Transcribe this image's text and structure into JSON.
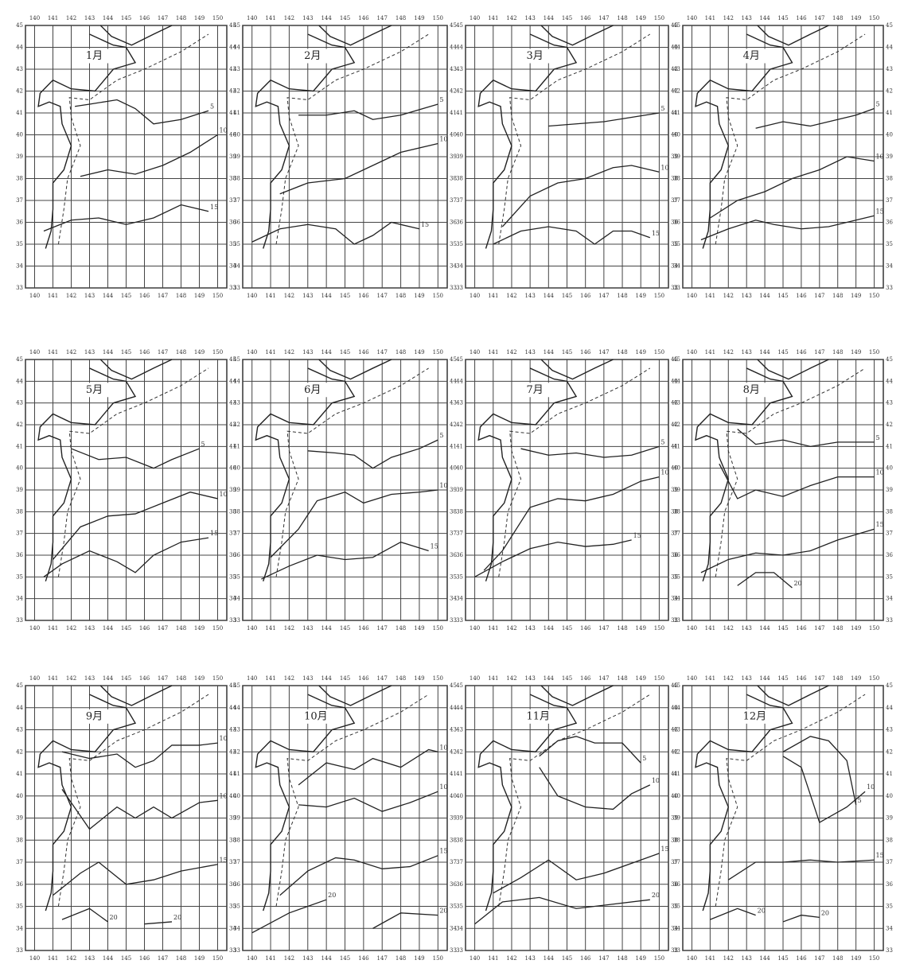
{
  "xlim": [
    139.5,
    150.5
  ],
  "ylim": [
    33,
    45
  ],
  "xticks": [
    140,
    141,
    142,
    143,
    144,
    145,
    146,
    147,
    148,
    149,
    150
  ],
  "yticks": [
    33,
    34,
    35,
    36,
    37,
    38,
    39,
    40,
    41,
    42,
    43,
    44,
    45
  ],
  "panels": [
    {
      "month": "1月",
      "isotherms": [
        {
          "level": 5,
          "lon": [
            142.2,
            143,
            144.5,
            145.5,
            146.5,
            148,
            149.5
          ],
          "lat": [
            41.3,
            41.4,
            41.6,
            41.2,
            40.5,
            40.7,
            41.1
          ]
        },
        {
          "level": 10,
          "lon": [
            142.5,
            144,
            145.5,
            147,
            148.5,
            150
          ],
          "lat": [
            38.1,
            38.4,
            38.2,
            38.6,
            39.2,
            40
          ]
        },
        {
          "level": 15,
          "lon": [
            140.5,
            142,
            143.5,
            145,
            146.5,
            148,
            149.5
          ],
          "lat": [
            35.6,
            36.1,
            36.2,
            35.9,
            36.2,
            36.8,
            36.5
          ]
        }
      ]
    },
    {
      "month": "2月",
      "isotherms": [
        {
          "level": 5,
          "lon": [
            142.5,
            144,
            145.5,
            146.5,
            148,
            150
          ],
          "lat": [
            40.9,
            40.9,
            41.1,
            40.7,
            40.9,
            41.4
          ]
        },
        {
          "level": 10,
          "lon": [
            141.5,
            143,
            145,
            146.5,
            148,
            150
          ],
          "lat": [
            37.3,
            37.8,
            38,
            38.6,
            39.2,
            39.6
          ]
        },
        {
          "level": 15,
          "lon": [
            140,
            141.5,
            143,
            144.5,
            145.5,
            146.5,
            147.5,
            149
          ],
          "lat": [
            35.1,
            35.7,
            35.9,
            35.7,
            35,
            35.4,
            36,
            35.7
          ]
        }
      ]
    },
    {
      "month": "3月",
      "isotherms": [
        {
          "level": 5,
          "lon": [
            144,
            145.5,
            147,
            148.5,
            150
          ],
          "lat": [
            40.4,
            40.5,
            40.6,
            40.8,
            41
          ]
        },
        {
          "level": 10,
          "lon": [
            141.5,
            143,
            144.5,
            146,
            147.5,
            148.5,
            150
          ],
          "lat": [
            35.8,
            37.2,
            37.8,
            38,
            38.5,
            38.6,
            38.3
          ]
        },
        {
          "level": 15,
          "lon": [
            141,
            142.5,
            144,
            145.5,
            146.5,
            147.5,
            148.5,
            149.5
          ],
          "lat": [
            35,
            35.6,
            35.8,
            35.6,
            35,
            35.6,
            35.6,
            35.3
          ]
        }
      ]
    },
    {
      "month": "4月",
      "isotherms": [
        {
          "level": 5,
          "lon": [
            143.5,
            145,
            146.5,
            148,
            149,
            150
          ],
          "lat": [
            40.3,
            40.6,
            40.4,
            40.7,
            40.9,
            41.2
          ]
        },
        {
          "level": 10,
          "lon": [
            141,
            142.5,
            144,
            145.5,
            147,
            148.5,
            150
          ],
          "lat": [
            36.2,
            37,
            37.4,
            38,
            38.4,
            39,
            38.8
          ]
        },
        {
          "level": 15,
          "lon": [
            140.5,
            142,
            143.5,
            144.5,
            146,
            147.5,
            149,
            150
          ],
          "lat": [
            35.2,
            35.7,
            36.1,
            35.9,
            35.7,
            35.8,
            36.1,
            36.3
          ]
        }
      ]
    },
    {
      "month": "5月",
      "isotherms": [
        {
          "level": 5,
          "lon": [
            142,
            143.5,
            145,
            146.5,
            147.5,
            149
          ],
          "lat": [
            40.9,
            40.4,
            40.5,
            40,
            40.4,
            40.9
          ]
        },
        {
          "level": 10,
          "lon": [
            141,
            142.5,
            144,
            145.5,
            147,
            148.5,
            150
          ],
          "lat": [
            35.8,
            37.3,
            37.8,
            37.9,
            38.4,
            38.9,
            38.6
          ]
        },
        {
          "level": 15,
          "lon": [
            140.5,
            141.5,
            143,
            144.5,
            145.5,
            146.5,
            148,
            149.5
          ],
          "lat": [
            35,
            35.6,
            36.2,
            35.7,
            35.2,
            36,
            36.6,
            36.8
          ]
        }
      ]
    },
    {
      "month": "6月",
      "isotherms": [
        {
          "level": 5,
          "lon": [
            143,
            144.5,
            145.5,
            146.5,
            147.5,
            149,
            150
          ],
          "lat": [
            40.8,
            40.7,
            40.6,
            40,
            40.5,
            40.9,
            41.3
          ]
        },
        {
          "level": 10,
          "lon": [
            141,
            142.5,
            143.5,
            145,
            146,
            147.5,
            149,
            150
          ],
          "lat": [
            35.9,
            37.2,
            38.5,
            38.9,
            38.4,
            38.8,
            38.9,
            39
          ]
        },
        {
          "level": 15,
          "lon": [
            140.5,
            142,
            143.5,
            145,
            146.5,
            148,
            149.5
          ],
          "lat": [
            34.9,
            35.5,
            36,
            35.8,
            35.9,
            36.6,
            36.2
          ]
        }
      ]
    },
    {
      "month": "7月",
      "isotherms": [
        {
          "level": 5,
          "lon": [
            142.5,
            144,
            145.5,
            147,
            148.5,
            150
          ],
          "lat": [
            40.9,
            40.6,
            40.7,
            40.5,
            40.6,
            41
          ]
        },
        {
          "level": 10,
          "lon": [
            140.5,
            141.5,
            143,
            144.5,
            146,
            147.5,
            149,
            150
          ],
          "lat": [
            35.3,
            36.2,
            38.2,
            38.6,
            38.5,
            38.8,
            39.4,
            39.6
          ]
        },
        {
          "level": 15,
          "lon": [
            140,
            141.5,
            143,
            144.5,
            146,
            147.5,
            148.5
          ],
          "lat": [
            35,
            35.7,
            36.3,
            36.6,
            36.4,
            36.5,
            36.7
          ]
        }
      ]
    },
    {
      "month": "8月",
      "isotherms": [
        {
          "level": 5,
          "lon": [
            142.5,
            143.5,
            145,
            146.5,
            148,
            150
          ],
          "lat": [
            41.8,
            41.1,
            41.3,
            41,
            41.2,
            41.2
          ]
        },
        {
          "level": 10,
          "lon": [
            141.5,
            142.5,
            143.5,
            145,
            146.5,
            148,
            150
          ],
          "lat": [
            40.2,
            38.6,
            39,
            38.7,
            39.2,
            39.6,
            39.6
          ]
        },
        {
          "level": 15,
          "lon": [
            140.5,
            142,
            143.5,
            145,
            146.5,
            148,
            150
          ],
          "lat": [
            35.2,
            35.8,
            36.1,
            36,
            36.2,
            36.7,
            37.2
          ]
        },
        {
          "level": 20,
          "lon": [
            142.5,
            143.5,
            144.5,
            145.5
          ],
          "lat": [
            34.6,
            35.2,
            35.2,
            34.5
          ]
        }
      ]
    },
    {
      "month": "9月",
      "isotherms": [
        {
          "level": 10,
          "lon": [
            141.5,
            143,
            144.5,
            145.5,
            146.5,
            147.5,
            149,
            150
          ],
          "lat": [
            42,
            41.7,
            41.9,
            41.3,
            41.6,
            42.3,
            42.3,
            42.4
          ]
        },
        {
          "level": 10,
          "lon": [
            141.5,
            143,
            144.5,
            145.5,
            146.5,
            147.5,
            149,
            150
          ],
          "lat": [
            40.3,
            38.5,
            39.5,
            39,
            39.5,
            39,
            39.7,
            39.8
          ]
        },
        {
          "level": 15,
          "lon": [
            141,
            142.5,
            143.5,
            145,
            146.5,
            148,
            150
          ],
          "lat": [
            35.5,
            36.5,
            37,
            36,
            36.2,
            36.6,
            36.9
          ]
        },
        {
          "level": 20,
          "lon": [
            141.5,
            143,
            144
          ],
          "lat": [
            34.4,
            34.9,
            34.3
          ]
        },
        {
          "level": 20,
          "lon": [
            146,
            147.5
          ],
          "lat": [
            34.2,
            34.3
          ]
        }
      ]
    },
    {
      "month": "10月",
      "isotherms": [
        {
          "level": 10,
          "lon": [
            142.5,
            144,
            145.5,
            146.5,
            148,
            149.5,
            150
          ],
          "lat": [
            40.5,
            41.5,
            41.2,
            41.7,
            41.3,
            42.1,
            42
          ]
        },
        {
          "level": 10,
          "lon": [
            142.5,
            144,
            145.5,
            147,
            148.5,
            150
          ],
          "lat": [
            39.6,
            39.5,
            39.9,
            39.3,
            39.7,
            40.2
          ]
        },
        {
          "level": 15,
          "lon": [
            141.5,
            143,
            144.5,
            145.5,
            147,
            148.5,
            150
          ],
          "lat": [
            35.5,
            36.6,
            37.2,
            37.1,
            36.7,
            36.8,
            37.3
          ]
        },
        {
          "level": 20,
          "lon": [
            140,
            142,
            144
          ],
          "lat": [
            33.8,
            34.7,
            35.3
          ]
        },
        {
          "level": 20,
          "lon": [
            146.5,
            148,
            150
          ],
          "lat": [
            34,
            34.7,
            34.6
          ]
        }
      ]
    },
    {
      "month": "11月",
      "isotherms": [
        {
          "level": 5,
          "lon": [
            143.5,
            144.5,
            145.5,
            146.5,
            148,
            149
          ],
          "lat": [
            41.8,
            42.5,
            42.7,
            42.4,
            42.4,
            41.5
          ]
        },
        {
          "level": 10,
          "lon": [
            143.5,
            144.5,
            146,
            147.5,
            148.5,
            149.5
          ],
          "lat": [
            41.3,
            40,
            39.5,
            39.4,
            40.1,
            40.5
          ]
        },
        {
          "level": 15,
          "lon": [
            141,
            142.5,
            144,
            145.5,
            147,
            149,
            150
          ],
          "lat": [
            35.6,
            36.3,
            37.1,
            36.2,
            36.5,
            37.1,
            37.4
          ]
        },
        {
          "level": 20,
          "lon": [
            140,
            141.5,
            143.5,
            145.5,
            147.5,
            149.5
          ],
          "lat": [
            34.2,
            35.2,
            35.4,
            34.9,
            35.1,
            35.3
          ]
        }
      ]
    },
    {
      "month": "12月",
      "isotherms": [
        {
          "level": 5,
          "lon": [
            145,
            146.5,
            147.5,
            148.5,
            149
          ],
          "lat": [
            42,
            42.7,
            42.5,
            41.6,
            39.6
          ]
        },
        {
          "level": 10,
          "lon": [
            145,
            146,
            147,
            148.5,
            149.5
          ],
          "lat": [
            41.8,
            41.3,
            38.8,
            39.5,
            40.2
          ]
        },
        {
          "level": 15,
          "lon": [
            142,
            143.5,
            145,
            146.5,
            148,
            150
          ],
          "lat": [
            36.2,
            37,
            37,
            37.1,
            37,
            37.1
          ]
        },
        {
          "level": 20,
          "lon": [
            141,
            142.5,
            143.5
          ],
          "lat": [
            34.4,
            34.9,
            34.6
          ]
        },
        {
          "level": 20,
          "lon": [
            145,
            146,
            147
          ],
          "lat": [
            34.3,
            34.6,
            34.5
          ]
        }
      ]
    }
  ]
}
